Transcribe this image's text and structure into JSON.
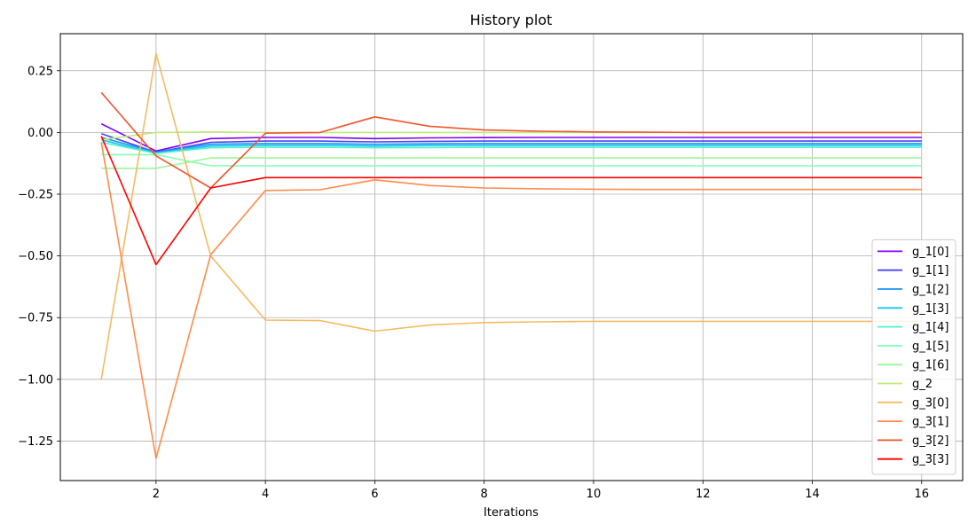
{
  "chart_data": {
    "type": "line",
    "title": "History plot",
    "xlabel": "Iterations",
    "ylabel": "",
    "xlim": [
      0.25,
      16.75
    ],
    "ylim": [
      -1.41,
      0.4
    ],
    "xticks": [
      2,
      4,
      6,
      8,
      10,
      12,
      14,
      16
    ],
    "xtick_labels": [
      "2",
      "4",
      "6",
      "8",
      "10",
      "12",
      "14",
      "16"
    ],
    "yticks": [
      0.25,
      0.0,
      -0.25,
      -0.5,
      -0.75,
      -1.0,
      -1.25
    ],
    "ytick_labels": [
      "0.25",
      "0.00",
      "−0.25",
      "−0.50",
      "−0.75",
      "−1.00",
      "−1.25"
    ],
    "grid": true,
    "legend_position": "lower right",
    "x": [
      1,
      2,
      3,
      4,
      5,
      6,
      7,
      8,
      9,
      10,
      11,
      12,
      13,
      14,
      15,
      16
    ],
    "series": [
      {
        "name": "g_1[0]",
        "color": "#8000ff",
        "values": [
          0.035,
          -0.075,
          -0.025,
          -0.02,
          -0.02,
          -0.025,
          -0.022,
          -0.021,
          -0.02,
          -0.02,
          -0.02,
          -0.02,
          -0.02,
          -0.02,
          -0.02,
          -0.02
        ]
      },
      {
        "name": "g_1[1]",
        "color": "#4a45f5",
        "values": [
          -0.005,
          -0.08,
          -0.04,
          -0.035,
          -0.035,
          -0.038,
          -0.036,
          -0.035,
          -0.035,
          -0.035,
          -0.035,
          -0.035,
          -0.035,
          -0.035,
          -0.035,
          -0.035
        ]
      },
      {
        "name": "g_1[2]",
        "color": "#1996f3",
        "values": [
          -0.02,
          -0.08,
          -0.048,
          -0.045,
          -0.045,
          -0.048,
          -0.046,
          -0.045,
          -0.045,
          -0.045,
          -0.045,
          -0.045,
          -0.045,
          -0.045,
          -0.045,
          -0.045
        ]
      },
      {
        "name": "g_1[3]",
        "color": "#1ac7ec",
        "values": [
          -0.03,
          -0.085,
          -0.055,
          -0.052,
          -0.052,
          -0.055,
          -0.053,
          -0.052,
          -0.052,
          -0.052,
          -0.052,
          -0.052,
          -0.052,
          -0.052,
          -0.052,
          -0.052
        ]
      },
      {
        "name": "g_1[4]",
        "color": "#4df3ce",
        "values": [
          -0.04,
          -0.085,
          -0.062,
          -0.06,
          -0.06,
          -0.062,
          -0.061,
          -0.06,
          -0.06,
          -0.06,
          -0.06,
          -0.06,
          -0.06,
          -0.06,
          -0.06,
          -0.06
        ]
      },
      {
        "name": "g_1[5]",
        "color": "#80ffb4",
        "values": [
          -0.09,
          -0.09,
          -0.135,
          -0.135,
          -0.135,
          -0.135,
          -0.135,
          -0.135,
          -0.135,
          -0.135,
          -0.135,
          -0.135,
          -0.135,
          -0.135,
          -0.135,
          -0.135
        ]
      },
      {
        "name": "g_1[6]",
        "color": "#9cf59a",
        "values": [
          -0.145,
          -0.145,
          -0.103,
          -0.103,
          -0.103,
          -0.103,
          -0.103,
          -0.103,
          -0.103,
          -0.103,
          -0.103,
          -0.103,
          -0.103,
          -0.103,
          -0.103,
          -0.103
        ]
      },
      {
        "name": "g_2",
        "color": "#c0eb7c",
        "values": [
          -0.03,
          0.0,
          0.002,
          0.0,
          0.0,
          0.0,
          0.0,
          0.0,
          0.0,
          0.0,
          0.0,
          0.0,
          0.0,
          0.0,
          0.0,
          0.0
        ]
      },
      {
        "name": "g_3[0]",
        "color": "#f3bb62",
        "values": [
          -1.0,
          0.32,
          -0.5,
          -0.76,
          -0.762,
          -0.805,
          -0.78,
          -0.77,
          -0.767,
          -0.765,
          -0.765,
          -0.765,
          -0.765,
          -0.765,
          -0.765,
          -0.765
        ]
      },
      {
        "name": "g_3[1]",
        "color": "#ff8c4a",
        "values": [
          -0.04,
          -1.32,
          -0.495,
          -0.235,
          -0.232,
          -0.192,
          -0.215,
          -0.225,
          -0.228,
          -0.23,
          -0.231,
          -0.231,
          -0.231,
          -0.231,
          -0.231,
          -0.231
        ]
      },
      {
        "name": "g_3[2]",
        "color": "#f0552e",
        "values": [
          0.162,
          -0.095,
          -0.225,
          -0.003,
          0.0,
          0.063,
          0.025,
          0.01,
          0.005,
          0.002,
          0.001,
          0.0,
          0.0,
          0.0,
          0.0,
          0.0
        ]
      },
      {
        "name": "g_3[3]",
        "color": "#ff0000",
        "values": [
          -0.015,
          -0.535,
          -0.225,
          -0.183,
          -0.183,
          -0.183,
          -0.183,
          -0.183,
          -0.183,
          -0.183,
          -0.183,
          -0.183,
          -0.183,
          -0.183,
          -0.183,
          -0.183
        ]
      }
    ]
  }
}
